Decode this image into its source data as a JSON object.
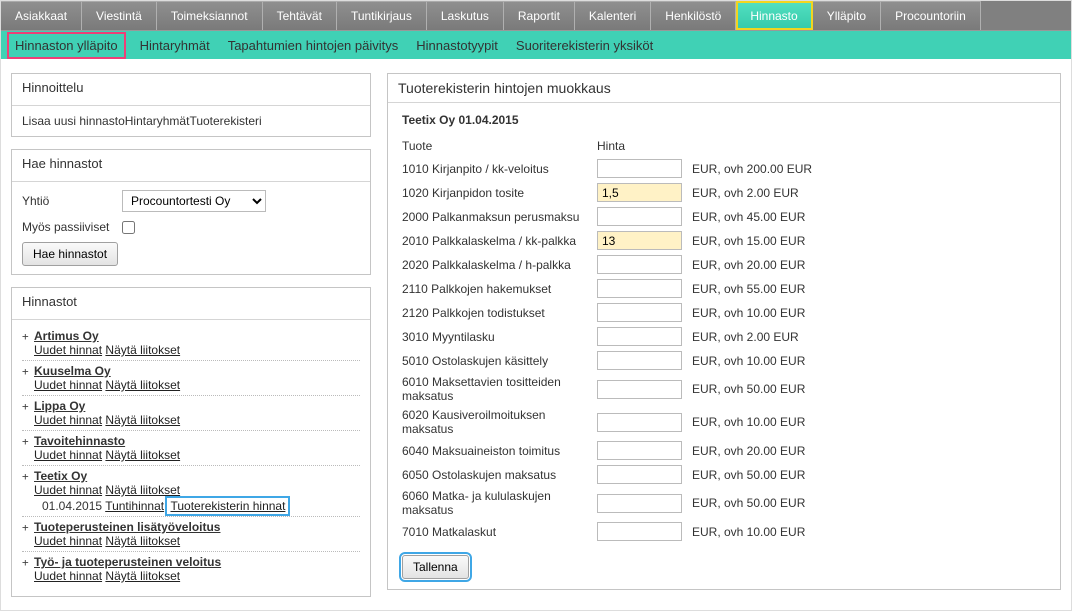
{
  "mainNav": {
    "items": [
      {
        "label": "Asiakkaat"
      },
      {
        "label": "Viestintä"
      },
      {
        "label": "Toimeksiannot"
      },
      {
        "label": "Tehtävät"
      },
      {
        "label": "Tuntikirjaus"
      },
      {
        "label": "Laskutus"
      },
      {
        "label": "Raportit"
      },
      {
        "label": "Kalenteri"
      },
      {
        "label": "Henkilöstö"
      },
      {
        "label": "Hinnasto"
      },
      {
        "label": "Ylläpito"
      },
      {
        "label": "Procountoriin"
      }
    ],
    "activeIndex": 9
  },
  "subNav": {
    "items": [
      "Hinnaston ylläpito",
      "Hintaryhmät",
      "Tapahtumien hintojen päivitys",
      "Hinnastotyypit",
      "Suoriterekisterin yksiköt"
    ],
    "activeIndex": 0
  },
  "pricingPanel": {
    "title": "Hinnoittelu",
    "links": [
      "Lisaa uusi hinnasto",
      "Hintaryhmät",
      "Tuoterekisteri"
    ]
  },
  "searchPanel": {
    "title": "Hae hinnastot",
    "companyLabel": "Yhtiö",
    "companyValue": "Procountortesti Oy",
    "passiveLabel": "Myös passiiviset",
    "passiveChecked": false,
    "buttonLabel": "Hae hinnastot"
  },
  "listPanel": {
    "title": "Hinnastot",
    "newPricesLabel": "Uudet hinnat",
    "showLinksLabel": "Näytä liitokset",
    "items": [
      {
        "name": "Artimus Oy",
        "expanded": false
      },
      {
        "name": "Kuuselma Oy",
        "expanded": false
      },
      {
        "name": "Lippa Oy",
        "expanded": false
      },
      {
        "name": "Tavoitehinnasto",
        "expanded": false
      },
      {
        "name": "Teetix Oy",
        "expanded": true,
        "subDate": "01.04.2015",
        "subLinks": [
          "Tuntihinnat",
          "Tuoterekisterin hinnat"
        ],
        "highlightIndex": 1
      },
      {
        "name": "Tuoteperusteinen lisätyöveloitus",
        "expanded": false
      },
      {
        "name": "Työ- ja tuoteperusteinen veloitus",
        "expanded": false
      }
    ]
  },
  "editor": {
    "title": "Tuoterekisterin hintojen muokkaus",
    "subtitle": "Teetix Oy 01.04.2015",
    "headers": {
      "product": "Tuote",
      "price": "Hinta"
    },
    "rows": [
      {
        "name": "1010 Kirjanpito / kk-veloitus",
        "value": "",
        "suffix": "EUR, ovh 200.00 EUR"
      },
      {
        "name": "1020 Kirjanpidon tosite",
        "value": "1,5",
        "suffix": "EUR, ovh 2.00 EUR"
      },
      {
        "name": "2000 Palkanmaksun perusmaksu",
        "value": "",
        "suffix": "EUR, ovh 45.00 EUR"
      },
      {
        "name": "2010 Palkkalaskelma / kk-palkka",
        "value": "13",
        "suffix": "EUR, ovh 15.00 EUR"
      },
      {
        "name": "2020 Palkkalaskelma / h-palkka",
        "value": "",
        "suffix": "EUR, ovh 20.00 EUR"
      },
      {
        "name": "2110 Palkkojen hakemukset",
        "value": "",
        "suffix": "EUR, ovh 55.00 EUR"
      },
      {
        "name": "2120 Palkkojen todistukset",
        "value": "",
        "suffix": "EUR, ovh 10.00 EUR"
      },
      {
        "name": "3010 Myyntilasku",
        "value": "",
        "suffix": "EUR, ovh 2.00 EUR"
      },
      {
        "name": "5010 Ostolaskujen käsittely",
        "value": "",
        "suffix": "EUR, ovh 10.00 EUR"
      },
      {
        "name": "6010 Maksettavien tositteiden maksatus",
        "value": "",
        "suffix": "EUR, ovh 50.00 EUR"
      },
      {
        "name": "6020 Kausiveroilmoituksen maksatus",
        "value": "",
        "suffix": "EUR, ovh 10.00 EUR"
      },
      {
        "name": "6040 Maksuaineiston toimitus",
        "value": "",
        "suffix": "EUR, ovh 20.00 EUR"
      },
      {
        "name": "6050 Ostolaskujen maksatus",
        "value": "",
        "suffix": "EUR, ovh 50.00 EUR"
      },
      {
        "name": "6060 Matka- ja kululaskujen maksatus",
        "value": "",
        "suffix": "EUR, ovh 50.00 EUR"
      },
      {
        "name": "7010 Matkalaskut",
        "value": "",
        "suffix": "EUR, ovh 10.00 EUR"
      }
    ],
    "saveLabel": "Tallenna"
  }
}
